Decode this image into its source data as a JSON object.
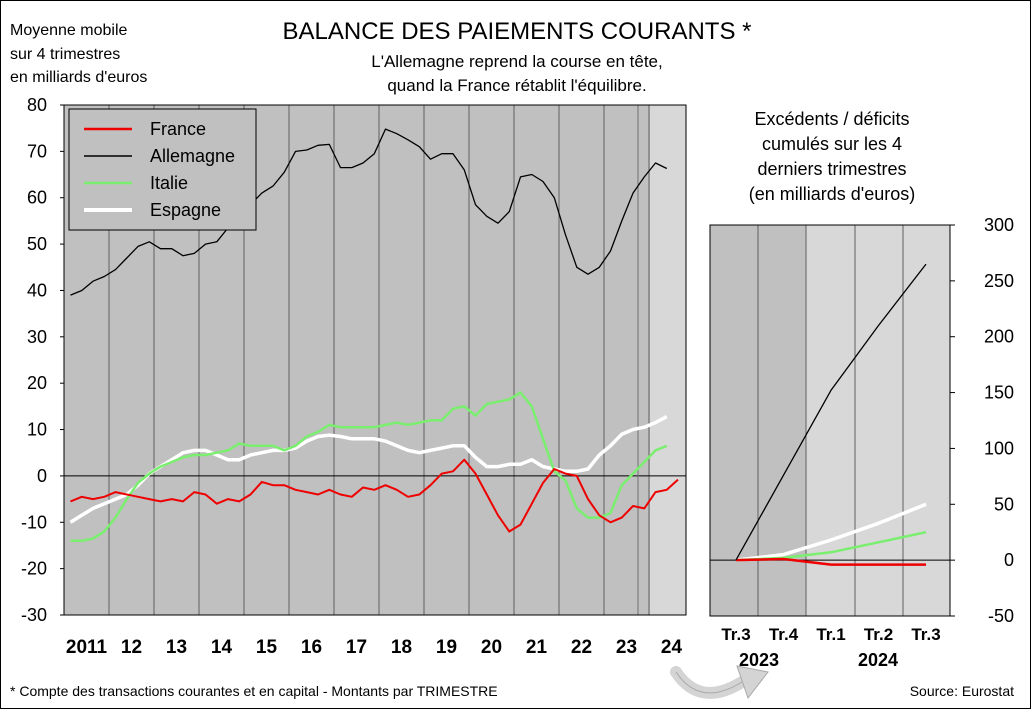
{
  "header": {
    "units_line1": "Moyenne mobile",
    "units_line2": "sur 4 trimestres",
    "units_line3": "en milliards d'euros",
    "title": "BALANCE DES PAIEMENTS COURANTS *",
    "subtitle_line1": "L'Allemagne reprend la course en tête,",
    "subtitle_line2": "quand la France rétablit l'équilibre."
  },
  "footer": {
    "note": "* Compte des transactions courantes et en capital - Montants par TRIMESTRE",
    "source": "Source: Eurostat"
  },
  "colors": {
    "France": "#ee0000",
    "Allemagne": "#000000",
    "Italie": "#7aee6e",
    "Espagne": "#ffffff",
    "plot_bg": "#c0c0c0",
    "plot_bg_light": "#d8d8d8"
  },
  "chart_data": [
    {
      "type": "line",
      "ylim": [
        -30,
        80
      ],
      "yticks": [
        "80",
        "70",
        "60",
        "50",
        "40",
        "30",
        "20",
        "10",
        "0",
        "-10",
        "-20",
        "-30"
      ],
      "xtick_labels": [
        "2011",
        "12",
        "13",
        "14",
        "15",
        "16",
        "17",
        "18",
        "19",
        "20",
        "21",
        "22",
        "23",
        "24"
      ],
      "legend": [
        "France",
        "Allemagne",
        "Italie",
        "Espagne"
      ],
      "legend_position": "top-left",
      "grid": "vertical lines at year boundaries",
      "x_start": "2011 Q1",
      "series": [
        {
          "name": "Allemagne",
          "values": [
            39,
            40,
            42,
            43,
            44.5,
            47,
            49.5,
            50.5,
            49,
            49,
            47.5,
            48,
            50,
            50.5,
            53.5,
            56,
            58.5,
            61,
            62.5,
            65.5,
            70,
            70.3,
            71.3,
            71.5,
            66.5,
            66.5,
            67.5,
            69.5,
            74.8,
            73.8,
            72.5,
            71,
            68.3,
            69.5,
            69.5,
            66,
            58.5,
            56,
            54.5,
            57,
            64.5,
            65,
            63.5,
            60,
            52,
            45,
            43.5,
            45,
            48.5,
            55,
            61,
            64.5,
            67.5,
            66.3
          ]
        },
        {
          "name": "France",
          "values": [
            -5.5,
            -4.5,
            -5,
            -4.5,
            -3.5,
            -4,
            -4.5,
            -5,
            -5.5,
            -5,
            -5.5,
            -3.5,
            -4,
            -6,
            -5,
            -5.5,
            -4,
            -1.3,
            -2,
            -2,
            -3,
            -3.5,
            -4,
            -3,
            -4,
            -4.5,
            -2.5,
            -3,
            -2,
            -3,
            -4.5,
            -4,
            -2,
            0.5,
            1,
            3.5,
            0.5,
            -4,
            -8.5,
            -12,
            -10.5,
            -6,
            -1.5,
            1.5,
            0.5,
            0,
            -5,
            -8.5,
            -10,
            -9,
            -6.5,
            -7,
            -3.5,
            -3,
            -0.8
          ]
        },
        {
          "name": "Italie",
          "values": [
            -14,
            -14,
            -13.5,
            -12,
            -9,
            -5,
            -1.5,
            0.5,
            2,
            3,
            4,
            4.5,
            4.5,
            5,
            5.5,
            7,
            6.5,
            6.5,
            6.5,
            5.5,
            6.5,
            8.5,
            9.5,
            11,
            10.5,
            10.5,
            10.5,
            10.5,
            11,
            11.5,
            11,
            11.5,
            12,
            12,
            14.5,
            15,
            13,
            15.5,
            16,
            16.5,
            18,
            15,
            8,
            1,
            -1,
            -7,
            -9,
            -9,
            -8,
            -2,
            0.5,
            3,
            5.5,
            6.5
          ]
        },
        {
          "name": "Espagne",
          "values": [
            -10,
            -8.5,
            -7,
            -6,
            -5,
            -4,
            -2,
            0.5,
            2,
            3.5,
            5,
            5.5,
            5.5,
            4.5,
            3.5,
            3.5,
            4.5,
            5,
            5.5,
            5.5,
            6,
            7.5,
            8.5,
            8.8,
            8.5,
            8,
            8,
            8,
            7.5,
            6.5,
            5.5,
            5,
            5.5,
            6,
            6.5,
            6.5,
            4,
            2,
            2,
            2.5,
            2.5,
            3.5,
            2,
            1.5,
            1,
            1,
            1.5,
            4.5,
            6.5,
            9,
            10,
            10.5,
            11.5,
            12.8
          ]
        }
      ]
    },
    {
      "type": "line",
      "title_lines": [
        "Excédents / déficits",
        "cumulés sur les 4",
        "derniers trimestres",
        "(en milliards d'euros)"
      ],
      "ylim": [
        -50,
        300
      ],
      "yticks": [
        "300",
        "250",
        "200",
        "150",
        "100",
        "50",
        "0",
        "-50"
      ],
      "categories": [
        "Tr.3",
        "Tr.4",
        "Tr.1",
        "Tr.2",
        "Tr.3"
      ],
      "year_labels": [
        "2023",
        "2024"
      ],
      "series": [
        {
          "name": "Allemagne",
          "values": [
            0,
            76,
            152,
            210,
            265
          ]
        },
        {
          "name": "France",
          "values": [
            0,
            1,
            -4,
            -4,
            -4
          ]
        },
        {
          "name": "Italie",
          "values": [
            0,
            2,
            7,
            16,
            25
          ]
        },
        {
          "name": "Espagne",
          "values": [
            0,
            5,
            18,
            33,
            50
          ]
        }
      ]
    }
  ]
}
